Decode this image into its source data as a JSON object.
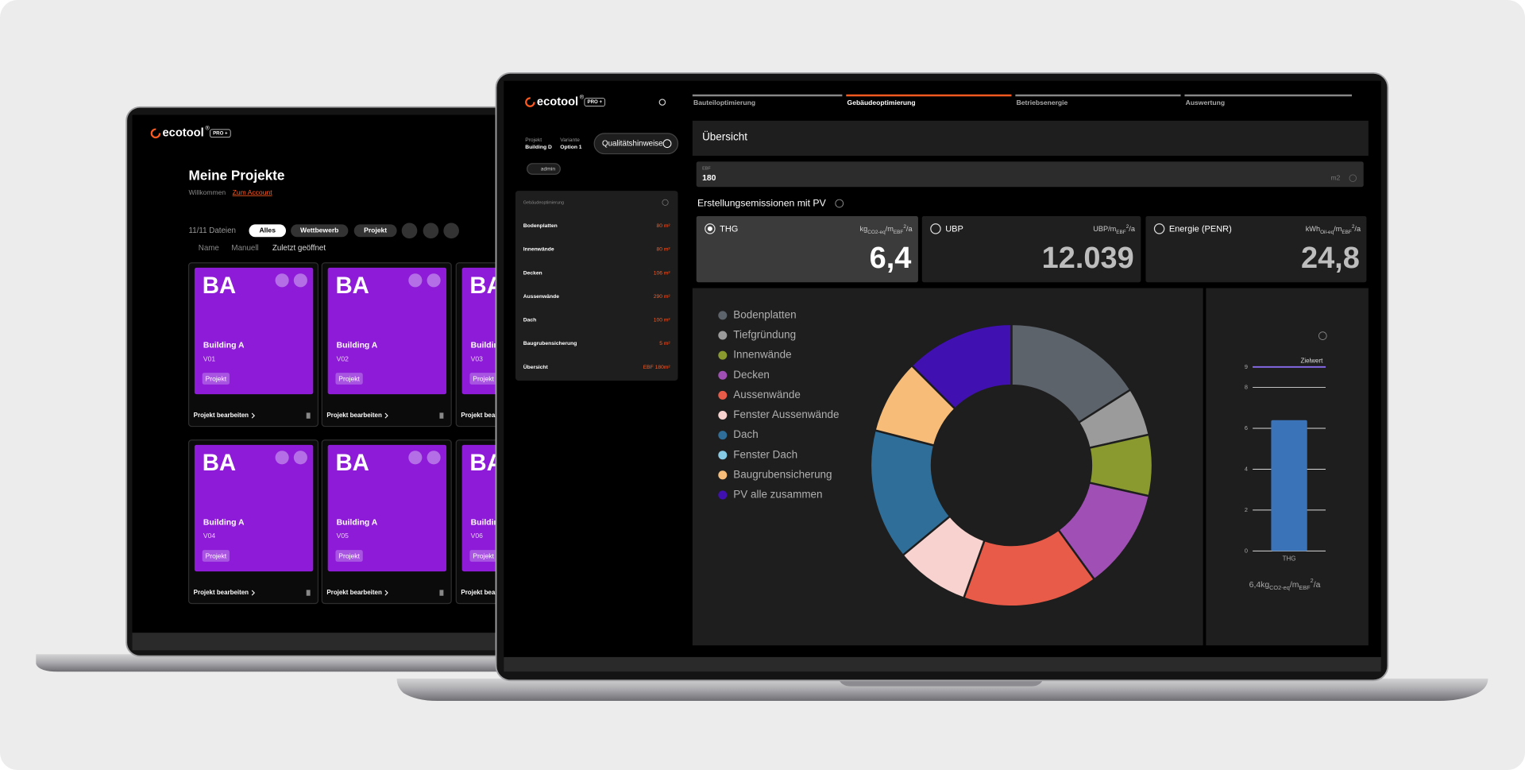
{
  "back_screen": {
    "logo": "ecotool",
    "logo_mark": "®",
    "badge": "PRO +",
    "title": "Meine Projekte",
    "welcome": "Willkommen",
    "account_link": "Zum Account",
    "file_count": "11/11 Dateien",
    "filters": [
      "Alles",
      "Wettbewerb",
      "Projekt"
    ],
    "sort": [
      "Name",
      "Manuell",
      "Zuletzt geöffnet"
    ],
    "cards": [
      {
        "initials": "BA",
        "name": "Building A",
        "version": "V01",
        "tag": "Projekt",
        "action": "Projekt bearbeiten"
      },
      {
        "initials": "BA",
        "name": "Building A",
        "version": "V02",
        "tag": "Projekt",
        "action": "Projekt bearbeiten"
      },
      {
        "initials": "BA",
        "name": "Building A",
        "version": "V03",
        "tag": "Projekt",
        "action": "Projekt bearbeiten"
      },
      {
        "initials": "BA",
        "name": "Building A",
        "version": "V04",
        "tag": "Projekt",
        "action": "Projekt bearbeiten"
      },
      {
        "initials": "BA",
        "name": "Building A",
        "version": "V05",
        "tag": "Projekt",
        "action": "Projekt bearbeiten"
      },
      {
        "initials": "BA",
        "name": "Building A",
        "version": "V06",
        "tag": "Projekt",
        "action": "Projekt bearbeiten"
      }
    ]
  },
  "front_screen": {
    "logo": "ecotool",
    "logo_mark": "®",
    "badge": "PRO +",
    "project_label": "Projekt",
    "project": "Building D",
    "variant_label": "Variante",
    "variant": "Option 1",
    "quality": "Qualitätshinweise",
    "user": "admin",
    "nav_title": "Gebäudeoptimierung",
    "nav": [
      {
        "label": "Bodenplatten",
        "value": "80 m²"
      },
      {
        "label": "Innenwände",
        "value": "80 m²"
      },
      {
        "label": "Decken",
        "value": "106 m²"
      },
      {
        "label": "Aussenwände",
        "value": "290 m²"
      },
      {
        "label": "Dach",
        "value": "100 m²"
      },
      {
        "label": "Baugrubensicherung",
        "value": "5 m²"
      },
      {
        "label": "Übersicht",
        "value": "EBF 180m²"
      }
    ],
    "tabs": [
      "Bauteiloptimierung",
      "Gebäudeoptimierung",
      "Betriebsenergie",
      "Auswertung"
    ],
    "active_tab": 1,
    "overview": "Übersicht",
    "ebf_label": "EBF",
    "ebf_value": "180",
    "ebf_unit": "m2",
    "section": "Erstellungsemissionen mit PV",
    "kpis": [
      {
        "label": "THG",
        "value": "6,4",
        "selected": true,
        "unit": [
          [
            "kg",
            "base"
          ],
          [
            "CO2-eq",
            "sub"
          ],
          [
            "/m",
            "base"
          ],
          [
            "EBF",
            "sub"
          ],
          [
            "2",
            "sup"
          ],
          [
            "/a",
            "base"
          ]
        ]
      },
      {
        "label": "UBP",
        "value": "12.039",
        "selected": false,
        "unit": [
          [
            "UBP/m",
            "base"
          ],
          [
            "EBF",
            "sub"
          ],
          [
            "2",
            "sup"
          ],
          [
            "/a",
            "base"
          ]
        ]
      },
      {
        "label": "Energie (PENR)",
        "value": "24,8",
        "selected": false,
        "unit": [
          [
            "kWh",
            "base"
          ],
          [
            "Oil-eq",
            "sub"
          ],
          [
            "/m",
            "base"
          ],
          [
            "EBF",
            "sub"
          ],
          [
            "2",
            "sup"
          ],
          [
            "/a",
            "base"
          ]
        ]
      }
    ],
    "donut": {
      "type": "pie",
      "series": [
        {
          "name": "Bodenplatten",
          "color": "#5d636b",
          "value": 16
        },
        {
          "name": "Tiefgründung",
          "color": "#9b9b9b",
          "value": 5.5
        },
        {
          "name": "Innenwände",
          "color": "#8a9a2e",
          "value": 7
        },
        {
          "name": "Decken",
          "color": "#a04fb4",
          "value": 11.5
        },
        {
          "name": "Aussenwände",
          "color": "#e85b48",
          "value": 15.5
        },
        {
          "name": "Fenster Aussenwände",
          "color": "#f8d2ce",
          "value": 8.5
        },
        {
          "name": "Dach",
          "color": "#2e6e98",
          "value": 15
        },
        {
          "name": "Fenster Dach",
          "color": "#86cbe6",
          "value": 0
        },
        {
          "name": "Baugrubensicherung",
          "color": "#f7bc78",
          "value": 8.5
        },
        {
          "name": "PV alle zusammen",
          "color": "#4010b0",
          "value": 12.5
        }
      ]
    },
    "bar": {
      "type": "bar",
      "categories": [
        "THG"
      ],
      "values": [
        6.4
      ],
      "color": "#3a73b8",
      "ylim": [
        0,
        9
      ],
      "yticks": [
        0,
        2,
        4,
        6,
        8,
        9
      ],
      "target": {
        "label": "Zielwert",
        "value": 9,
        "color": "#8a6cf0"
      },
      "caption_value": "6,4",
      "caption_unit": [
        [
          "kg",
          "base"
        ],
        [
          "CO2-eq",
          "sub"
        ],
        [
          "/m",
          "base"
        ],
        [
          "EBF",
          "sub"
        ],
        [
          "2",
          "sup"
        ],
        [
          "/a",
          "base"
        ]
      ]
    }
  }
}
